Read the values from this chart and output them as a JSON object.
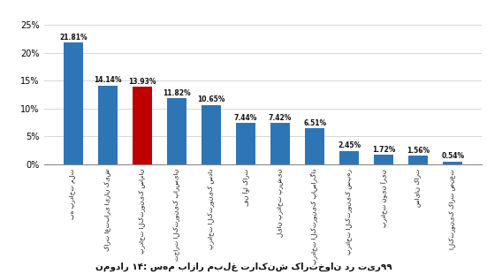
{
  "categories_raw": [
    "به پرداخت ملت",
    "کارت اعتباری ایران کیش",
    "پرداخت الکترونیک سامان",
    "تجارت الکترونیک پارسیان",
    "پرداخت الکترونیک سداد",
    "فن آوا کارت",
    "لیان پرداخت پرشین",
    "پرداخت الکترونیک پاسارگاد",
    "پرداخت الکترونیک سپهر",
    "پرداخت نوین آرین",
    "سایان کارت",
    "الکترونیک کارت صنعت"
  ],
  "values": [
    21.81,
    14.14,
    13.93,
    11.82,
    10.65,
    7.44,
    7.42,
    6.51,
    2.45,
    1.72,
    1.56,
    0.54
  ],
  "colors": [
    "#2e75b6",
    "#2e75b6",
    "#c00000",
    "#2e75b6",
    "#2e75b6",
    "#2e75b6",
    "#2e75b6",
    "#2e75b6",
    "#2e75b6",
    "#2e75b6",
    "#2e75b6",
    "#2e75b6"
  ],
  "labels": [
    "21.81%",
    "14.14%",
    "13.93%",
    "11.82%",
    "10.65%",
    "7.44%",
    "7.42%",
    "6.51%",
    "2.45%",
    "1.72%",
    "1.56%",
    "0.54%"
  ],
  "ylabel_ticks": [
    "0%",
    "5%",
    "10%",
    "15%",
    "20%",
    "25%"
  ],
  "yticks": [
    0,
    5,
    10,
    15,
    20,
    25
  ],
  "caption_raw": "نمودار ۱۴: سهم بازار مبلغ تراکنش کارتخوان در تیر۹۹",
  "ylim": [
    0,
    27
  ],
  "bg_color": "#ffffff",
  "grid_color": "#d0d0d0",
  "bar_width": 0.55
}
